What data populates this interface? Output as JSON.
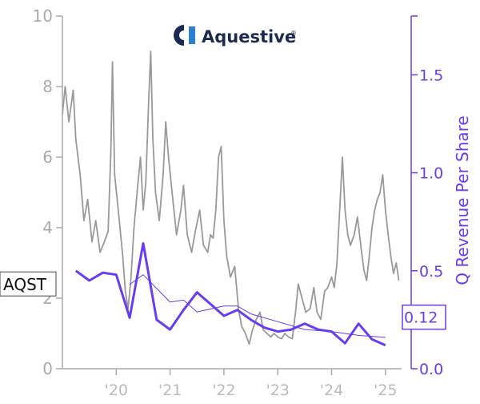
{
  "logo": {
    "text": "Aquestive",
    "mark": "registered",
    "color": "#1c2a4f",
    "accent": "#2f7fd1"
  },
  "chart_data": {
    "type": "line",
    "x_ticks": [
      "'20",
      "'21",
      "'22",
      "'23",
      "'24",
      "'25"
    ],
    "y_left": {
      "ylim": [
        0,
        10
      ],
      "ticks": [
        "0",
        "2",
        "4",
        "6",
        "8",
        "10"
      ],
      "color": "#aaaaaa"
    },
    "y_right": {
      "ylim": [
        0,
        1.8
      ],
      "ticks": [
        "0.0",
        "0.5",
        "1.0",
        "1.5"
      ],
      "label": "Q Revenue Per Share",
      "color": "#6a3cf0"
    },
    "ticker_label": {
      "text": "AQST",
      "value": 2.7
    },
    "last_value_label": {
      "text": "0.12",
      "value": 0.12
    },
    "series": [
      {
        "axis": "left",
        "color": "#999999",
        "points": [
          [
            2019.0,
            7.2
          ],
          [
            2019.05,
            8.0
          ],
          [
            2019.12,
            7.0
          ],
          [
            2019.2,
            7.9
          ],
          [
            2019.25,
            6.5
          ],
          [
            2019.33,
            5.5
          ],
          [
            2019.4,
            4.2
          ],
          [
            2019.47,
            4.8
          ],
          [
            2019.55,
            3.6
          ],
          [
            2019.62,
            4.2
          ],
          [
            2019.7,
            3.3
          ],
          [
            2019.78,
            3.6
          ],
          [
            2019.85,
            3.9
          ],
          [
            2019.9,
            6.2
          ],
          [
            2019.93,
            8.7
          ],
          [
            2019.97,
            5.5
          ],
          [
            2020.05,
            4.3
          ],
          [
            2020.12,
            3.2
          ],
          [
            2020.17,
            2.2
          ],
          [
            2020.22,
            1.7
          ],
          [
            2020.27,
            2.5
          ],
          [
            2020.33,
            4.0
          ],
          [
            2020.4,
            5.2
          ],
          [
            2020.45,
            6.0
          ],
          [
            2020.5,
            4.5
          ],
          [
            2020.55,
            5.3
          ],
          [
            2020.6,
            7.5
          ],
          [
            2020.64,
            9.0
          ],
          [
            2020.68,
            6.5
          ],
          [
            2020.73,
            5.0
          ],
          [
            2020.8,
            4.2
          ],
          [
            2020.87,
            5.5
          ],
          [
            2020.92,
            7.0
          ],
          [
            2020.97,
            6.0
          ],
          [
            2021.05,
            4.8
          ],
          [
            2021.12,
            3.8
          ],
          [
            2021.2,
            4.5
          ],
          [
            2021.25,
            5.2
          ],
          [
            2021.32,
            3.8
          ],
          [
            2021.4,
            3.3
          ],
          [
            2021.47,
            3.9
          ],
          [
            2021.55,
            4.5
          ],
          [
            2021.62,
            3.5
          ],
          [
            2021.7,
            3.3
          ],
          [
            2021.75,
            3.8
          ],
          [
            2021.8,
            3.7
          ],
          [
            2021.85,
            4.5
          ],
          [
            2021.9,
            6.0
          ],
          [
            2021.95,
            6.3
          ],
          [
            2022.0,
            4.2
          ],
          [
            2022.05,
            3.2
          ],
          [
            2022.12,
            2.6
          ],
          [
            2022.2,
            2.9
          ],
          [
            2022.27,
            1.7
          ],
          [
            2022.33,
            1.2
          ],
          [
            2022.4,
            1.0
          ],
          [
            2022.47,
            0.7
          ],
          [
            2022.53,
            1.1
          ],
          [
            2022.6,
            1.4
          ],
          [
            2022.67,
            1.6
          ],
          [
            2022.73,
            1.1
          ],
          [
            2022.8,
            1.0
          ],
          [
            2022.87,
            0.9
          ],
          [
            2022.93,
            1.0
          ],
          [
            2023.0,
            0.9
          ],
          [
            2023.07,
            0.85
          ],
          [
            2023.13,
            1.0
          ],
          [
            2023.2,
            0.9
          ],
          [
            2023.27,
            0.85
          ],
          [
            2023.33,
            1.6
          ],
          [
            2023.38,
            2.4
          ],
          [
            2023.45,
            2.0
          ],
          [
            2023.52,
            1.6
          ],
          [
            2023.6,
            1.7
          ],
          [
            2023.67,
            2.3
          ],
          [
            2023.73,
            1.6
          ],
          [
            2023.8,
            1.4
          ],
          [
            2023.87,
            2.2
          ],
          [
            2023.93,
            2.3
          ],
          [
            2024.0,
            2.6
          ],
          [
            2024.05,
            2.3
          ],
          [
            2024.1,
            3.0
          ],
          [
            2024.15,
            4.5
          ],
          [
            2024.2,
            6.0
          ],
          [
            2024.25,
            4.5
          ],
          [
            2024.3,
            3.8
          ],
          [
            2024.35,
            3.5
          ],
          [
            2024.42,
            3.8
          ],
          [
            2024.48,
            4.3
          ],
          [
            2024.55,
            3.4
          ],
          [
            2024.6,
            2.8
          ],
          [
            2024.65,
            2.5
          ],
          [
            2024.7,
            3.2
          ],
          [
            2024.75,
            4.0
          ],
          [
            2024.8,
            4.5
          ],
          [
            2024.85,
            4.8
          ],
          [
            2024.9,
            5.0
          ],
          [
            2024.95,
            5.5
          ],
          [
            2025.0,
            4.5
          ],
          [
            2025.05,
            3.8
          ],
          [
            2025.1,
            3.2
          ],
          [
            2025.15,
            2.7
          ],
          [
            2025.2,
            3.0
          ],
          [
            2025.25,
            2.5
          ]
        ]
      },
      {
        "axis": "right",
        "color": "#6a3cf0",
        "width": 3,
        "points": [
          [
            2019.25,
            0.5
          ],
          [
            2019.5,
            0.45
          ],
          [
            2019.75,
            0.49
          ],
          [
            2020.0,
            0.48
          ],
          [
            2020.25,
            0.26
          ],
          [
            2020.5,
            0.64
          ],
          [
            2020.75,
            0.25
          ],
          [
            2021.0,
            0.2
          ],
          [
            2021.25,
            0.3
          ],
          [
            2021.5,
            0.39
          ],
          [
            2021.75,
            0.33
          ],
          [
            2022.0,
            0.27
          ],
          [
            2022.25,
            0.3
          ],
          [
            2022.5,
            0.25
          ],
          [
            2022.75,
            0.21
          ],
          [
            2023.0,
            0.19
          ],
          [
            2023.25,
            0.2
          ],
          [
            2023.5,
            0.23
          ],
          [
            2023.75,
            0.2
          ],
          [
            2024.0,
            0.19
          ],
          [
            2024.25,
            0.13
          ],
          [
            2024.5,
            0.23
          ],
          [
            2024.75,
            0.15
          ],
          [
            2025.0,
            0.12
          ]
        ]
      },
      {
        "axis": "right",
        "color": "#6a3cf0",
        "width": 1,
        "points": [
          [
            2020.25,
            0.43
          ],
          [
            2020.5,
            0.48
          ],
          [
            2021.0,
            0.34
          ],
          [
            2021.25,
            0.35
          ],
          [
            2021.5,
            0.29
          ],
          [
            2022.0,
            0.32
          ],
          [
            2022.25,
            0.32
          ],
          [
            2022.5,
            0.28
          ],
          [
            2023.0,
            0.24
          ],
          [
            2023.5,
            0.2
          ],
          [
            2024.0,
            0.19
          ],
          [
            2024.5,
            0.17
          ],
          [
            2025.0,
            0.16
          ]
        ]
      }
    ]
  }
}
